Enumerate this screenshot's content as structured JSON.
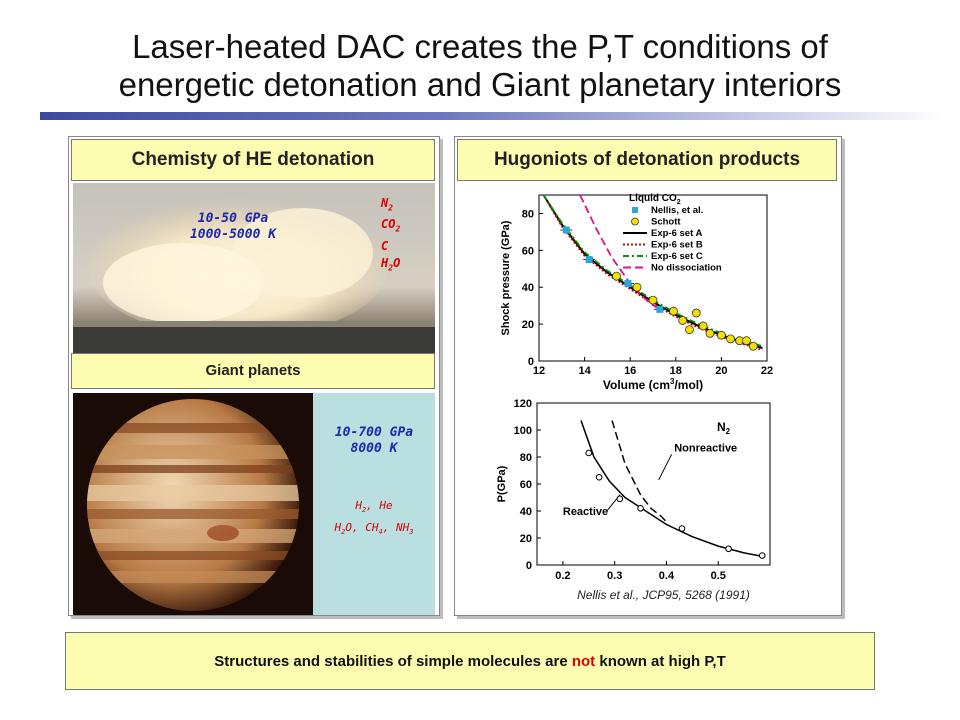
{
  "title_line1": "Laser-heated DAC creates the P,T conditions of",
  "title_line2": "energetic detonation and Giant planetary interiors",
  "left_panel": {
    "header": "Chemisty of HE detonation",
    "detonation_pressure": "10-50 GPa",
    "detonation_temperature": "1000-5000 K",
    "detonation_products": [
      "N",
      "CO",
      "C",
      "H",
      "O"
    ],
    "giant_header": "Giant planets",
    "planet_pressure": "10-700 GPa",
    "planet_temperature": "8000 K",
    "planet_species_1": "H",
    "planet_species_1b": ", He",
    "planet_species_2": "H",
    "planet_species_2b": "O, CH",
    "planet_species_2c": ", NH",
    "sub2": "2",
    "sub3": "3",
    "sub4": "4"
  },
  "right_panel": {
    "header": "Hugoniots of detonation products"
  },
  "chart_data": [
    {
      "type": "line",
      "legend_title": "Liquid CO",
      "legend_title_sub": "2",
      "xlabel": "Volume (cm",
      "xlabel_sup": "3",
      "xlabel_end": "/mol)",
      "ylabel": "Shock pressure (GPa)",
      "xlim": [
        12,
        22
      ],
      "ylim": [
        0,
        90
      ],
      "x_ticks": [
        "12",
        "14",
        "16",
        "18",
        "20",
        "22"
      ],
      "y_ticks": [
        "0",
        "20",
        "40",
        "60",
        "80"
      ],
      "series": [
        {
          "name": "Nellis, et al.",
          "marker": "square",
          "color": "#2aa6d8",
          "x": [
            13.2,
            14.2,
            15.9,
            17.3
          ],
          "y": [
            71,
            55,
            42,
            28
          ]
        },
        {
          "name": "Schott",
          "marker": "circle",
          "color": "#f4e000",
          "x": [
            15.4,
            16.3,
            17.0,
            17.9,
            18.3,
            18.6,
            18.9,
            19.2,
            19.5,
            20.0,
            20.4,
            20.8,
            21.1,
            21.4
          ],
          "y": [
            46,
            40,
            33,
            27,
            22,
            17,
            26,
            19,
            15,
            14,
            12,
            11,
            11,
            8
          ]
        },
        {
          "name": "Exp-6 set A",
          "style": "solid",
          "color": "#000000",
          "x": [
            12.2,
            13.0,
            14.0,
            15.0,
            16.0,
            17.0,
            18.0,
            19.0,
            20.0,
            21.0,
            21.8
          ],
          "y": [
            90,
            74,
            58,
            48,
            40,
            32,
            25,
            19,
            14,
            10,
            7
          ]
        },
        {
          "name": "Exp-6 set B",
          "style": "dotted",
          "color": "#cc0000",
          "x": [
            12.2,
            13.0,
            14.0,
            15.0,
            16.0,
            17.0,
            18.0,
            19.0,
            20.0,
            21.0,
            21.8
          ],
          "y": [
            90,
            73,
            57,
            47,
            39,
            31,
            24,
            18,
            13,
            9,
            6
          ]
        },
        {
          "name": "Exp-6 set C",
          "style": "dashdot",
          "color": "#009900",
          "x": [
            12.2,
            13.0,
            14.0,
            15.0,
            16.0,
            17.0,
            18.0,
            19.0,
            20.0,
            21.0,
            21.8
          ],
          "y": [
            90,
            75,
            59,
            49,
            41,
            33,
            26,
            20,
            15,
            11,
            8
          ]
        },
        {
          "name": "No dissociation",
          "style": "dashed",
          "color": "#e0108c",
          "x": [
            13.8,
            14.5,
            15.2,
            16.0,
            16.8,
            17.4
          ],
          "y": [
            90,
            72,
            56,
            42,
            32,
            27
          ]
        }
      ]
    },
    {
      "type": "line",
      "label": "N",
      "label_sub": "2",
      "ylabel": "P(GPa)",
      "xlim": [
        0.15,
        0.6
      ],
      "ylim": [
        0,
        120
      ],
      "x_ticks": [
        "0.2",
        "0.3",
        "0.4",
        "0.5"
      ],
      "y_ticks": [
        "0",
        "20",
        "40",
        "60",
        "80",
        "100",
        "120"
      ],
      "citation": "Nellis et al., JCP95, 5268 (1991)",
      "series": [
        {
          "name": "Reactive",
          "style": "solid",
          "color": "#000000",
          "x": [
            0.235,
            0.26,
            0.29,
            0.32,
            0.36,
            0.4,
            0.45,
            0.5,
            0.55,
            0.59
          ],
          "y": [
            107,
            80,
            62,
            50,
            40,
            30,
            21,
            14,
            9,
            6
          ]
        },
        {
          "name": "Nonreactive",
          "style": "dashed",
          "color": "#000000",
          "x": [
            0.295,
            0.32,
            0.35,
            0.37,
            0.39,
            0.4
          ],
          "y": [
            107,
            75,
            52,
            42,
            36,
            32
          ]
        },
        {
          "name": "data",
          "marker": "circle",
          "color": "#000000",
          "x": [
            0.25,
            0.27,
            0.31,
            0.35,
            0.43,
            0.52,
            0.585
          ],
          "y": [
            83,
            65,
            49,
            42,
            27,
            12,
            7
          ]
        }
      ]
    }
  ],
  "bottom_text_1": "Structures and stabilities of simple molecules are ",
  "bottom_text_not": "not",
  "bottom_text_2": " known at high P,T",
  "colors": {
    "accent_red": "#dd0000",
    "pressure_blue": "#1a2aa8",
    "header_yellow": "#fdfdb2",
    "planet_panel": "#b9dfe0"
  }
}
